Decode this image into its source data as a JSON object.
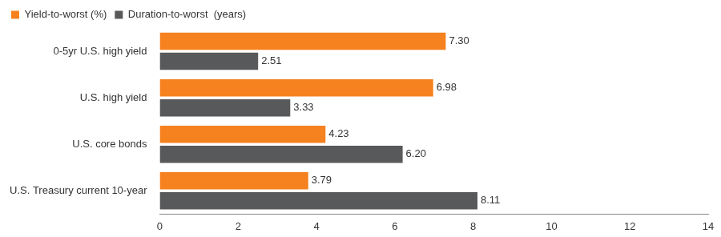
{
  "chart_data": {
    "type": "bar",
    "orientation": "horizontal",
    "categories": [
      "0-5yr U.S. high yield",
      "U.S. high yield",
      "U.S. core bonds",
      "U.S. Treasury current 10-year"
    ],
    "series": [
      {
        "name": "Yield-to-worst (%)",
        "color": "#f5821f",
        "values": [
          7.3,
          6.98,
          4.23,
          3.79
        ],
        "value_labels": [
          "7.30",
          "6.98",
          "4.23",
          "3.79"
        ]
      },
      {
        "name": "Duration-to-worst  (years)",
        "color": "#58595b",
        "values": [
          2.51,
          3.33,
          6.2,
          8.11
        ],
        "value_labels": [
          "2.51",
          "3.33",
          "6.20",
          "8.11"
        ]
      }
    ],
    "xlim": [
      0,
      14
    ],
    "xticks": [
      0,
      2,
      4,
      6,
      8,
      10,
      12,
      14
    ],
    "grid": false,
    "legend": "top-left",
    "data_labels": true
  }
}
